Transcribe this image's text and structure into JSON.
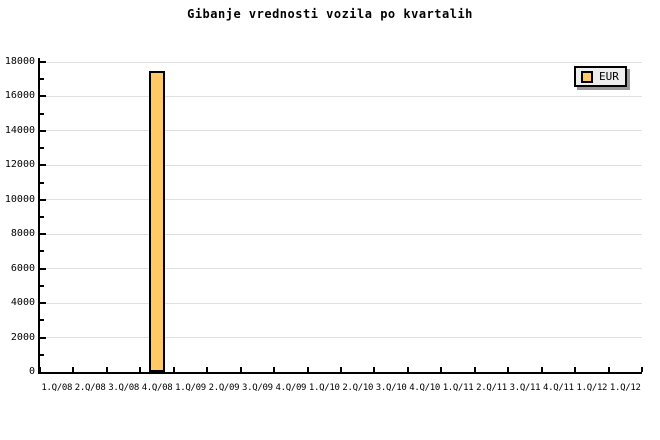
{
  "chart_data": {
    "type": "bar",
    "title": "Gibanje vrednosti vozila po kvartalih",
    "categories": [
      "1.Q/08",
      "2.Q/08",
      "3.Q/08",
      "4.Q/08",
      "1.Q/09",
      "2.Q/09",
      "3.Q/09",
      "4.Q/09",
      "1.Q/10",
      "2.Q/10",
      "3.Q/10",
      "4.Q/10",
      "1.Q/11",
      "2.Q/11",
      "3.Q/11",
      "4.Q/11",
      "1.Q/12",
      "1.Q/12"
    ],
    "series": [
      {
        "name": "EUR",
        "values": [
          null,
          null,
          null,
          17500,
          null,
          null,
          null,
          null,
          null,
          null,
          null,
          null,
          null,
          null,
          null,
          null,
          null,
          null
        ]
      }
    ],
    "ylim": [
      0,
      18000
    ],
    "yticks": [
      0,
      2000,
      4000,
      6000,
      8000,
      10000,
      12000,
      14000,
      16000,
      18000
    ],
    "ytick_minor_step": 1000,
    "grid": "horizontal-major",
    "legend": {
      "label": "EUR",
      "position": "top-right"
    },
    "colors": {
      "bar_fill": "#FFC966",
      "bar_border": "#000000",
      "gridline": "#E0E0E0",
      "axis": "#000000",
      "text": "#000000",
      "legend_bg": "#EEEEEE",
      "legend_shadow": "#999999",
      "background": "#FFFFFF"
    }
  }
}
